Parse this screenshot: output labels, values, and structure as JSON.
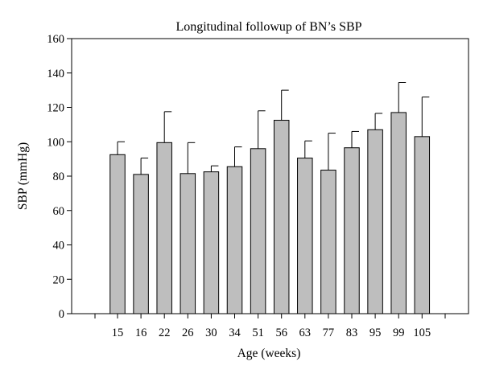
{
  "chart_data": {
    "type": "bar",
    "title": "Longitudinal followup of BN’s SBP",
    "xlabel": "Age (weeks)",
    "ylabel": "SBP (mmHg)",
    "categories": [
      "15",
      "16",
      "22",
      "26",
      "30",
      "34",
      "51",
      "56",
      "63",
      "77",
      "83",
      "95",
      "99",
      "105"
    ],
    "values": [
      92.5,
      81,
      99.5,
      81.5,
      82.5,
      85.5,
      96,
      112.5,
      90.5,
      83.5,
      96.5,
      107,
      117,
      103
    ],
    "error_upper": [
      100,
      90.5,
      117.5,
      99.5,
      86,
      97,
      118,
      130,
      100.5,
      105,
      106,
      116.5,
      134.5,
      126
    ],
    "ylim": [
      0,
      160
    ],
    "yticks": [
      0,
      20,
      40,
      60,
      80,
      100,
      120,
      140,
      160
    ],
    "grid": false,
    "legend": "none",
    "bar_color": "#bebebe",
    "edge_color": "#000000"
  }
}
